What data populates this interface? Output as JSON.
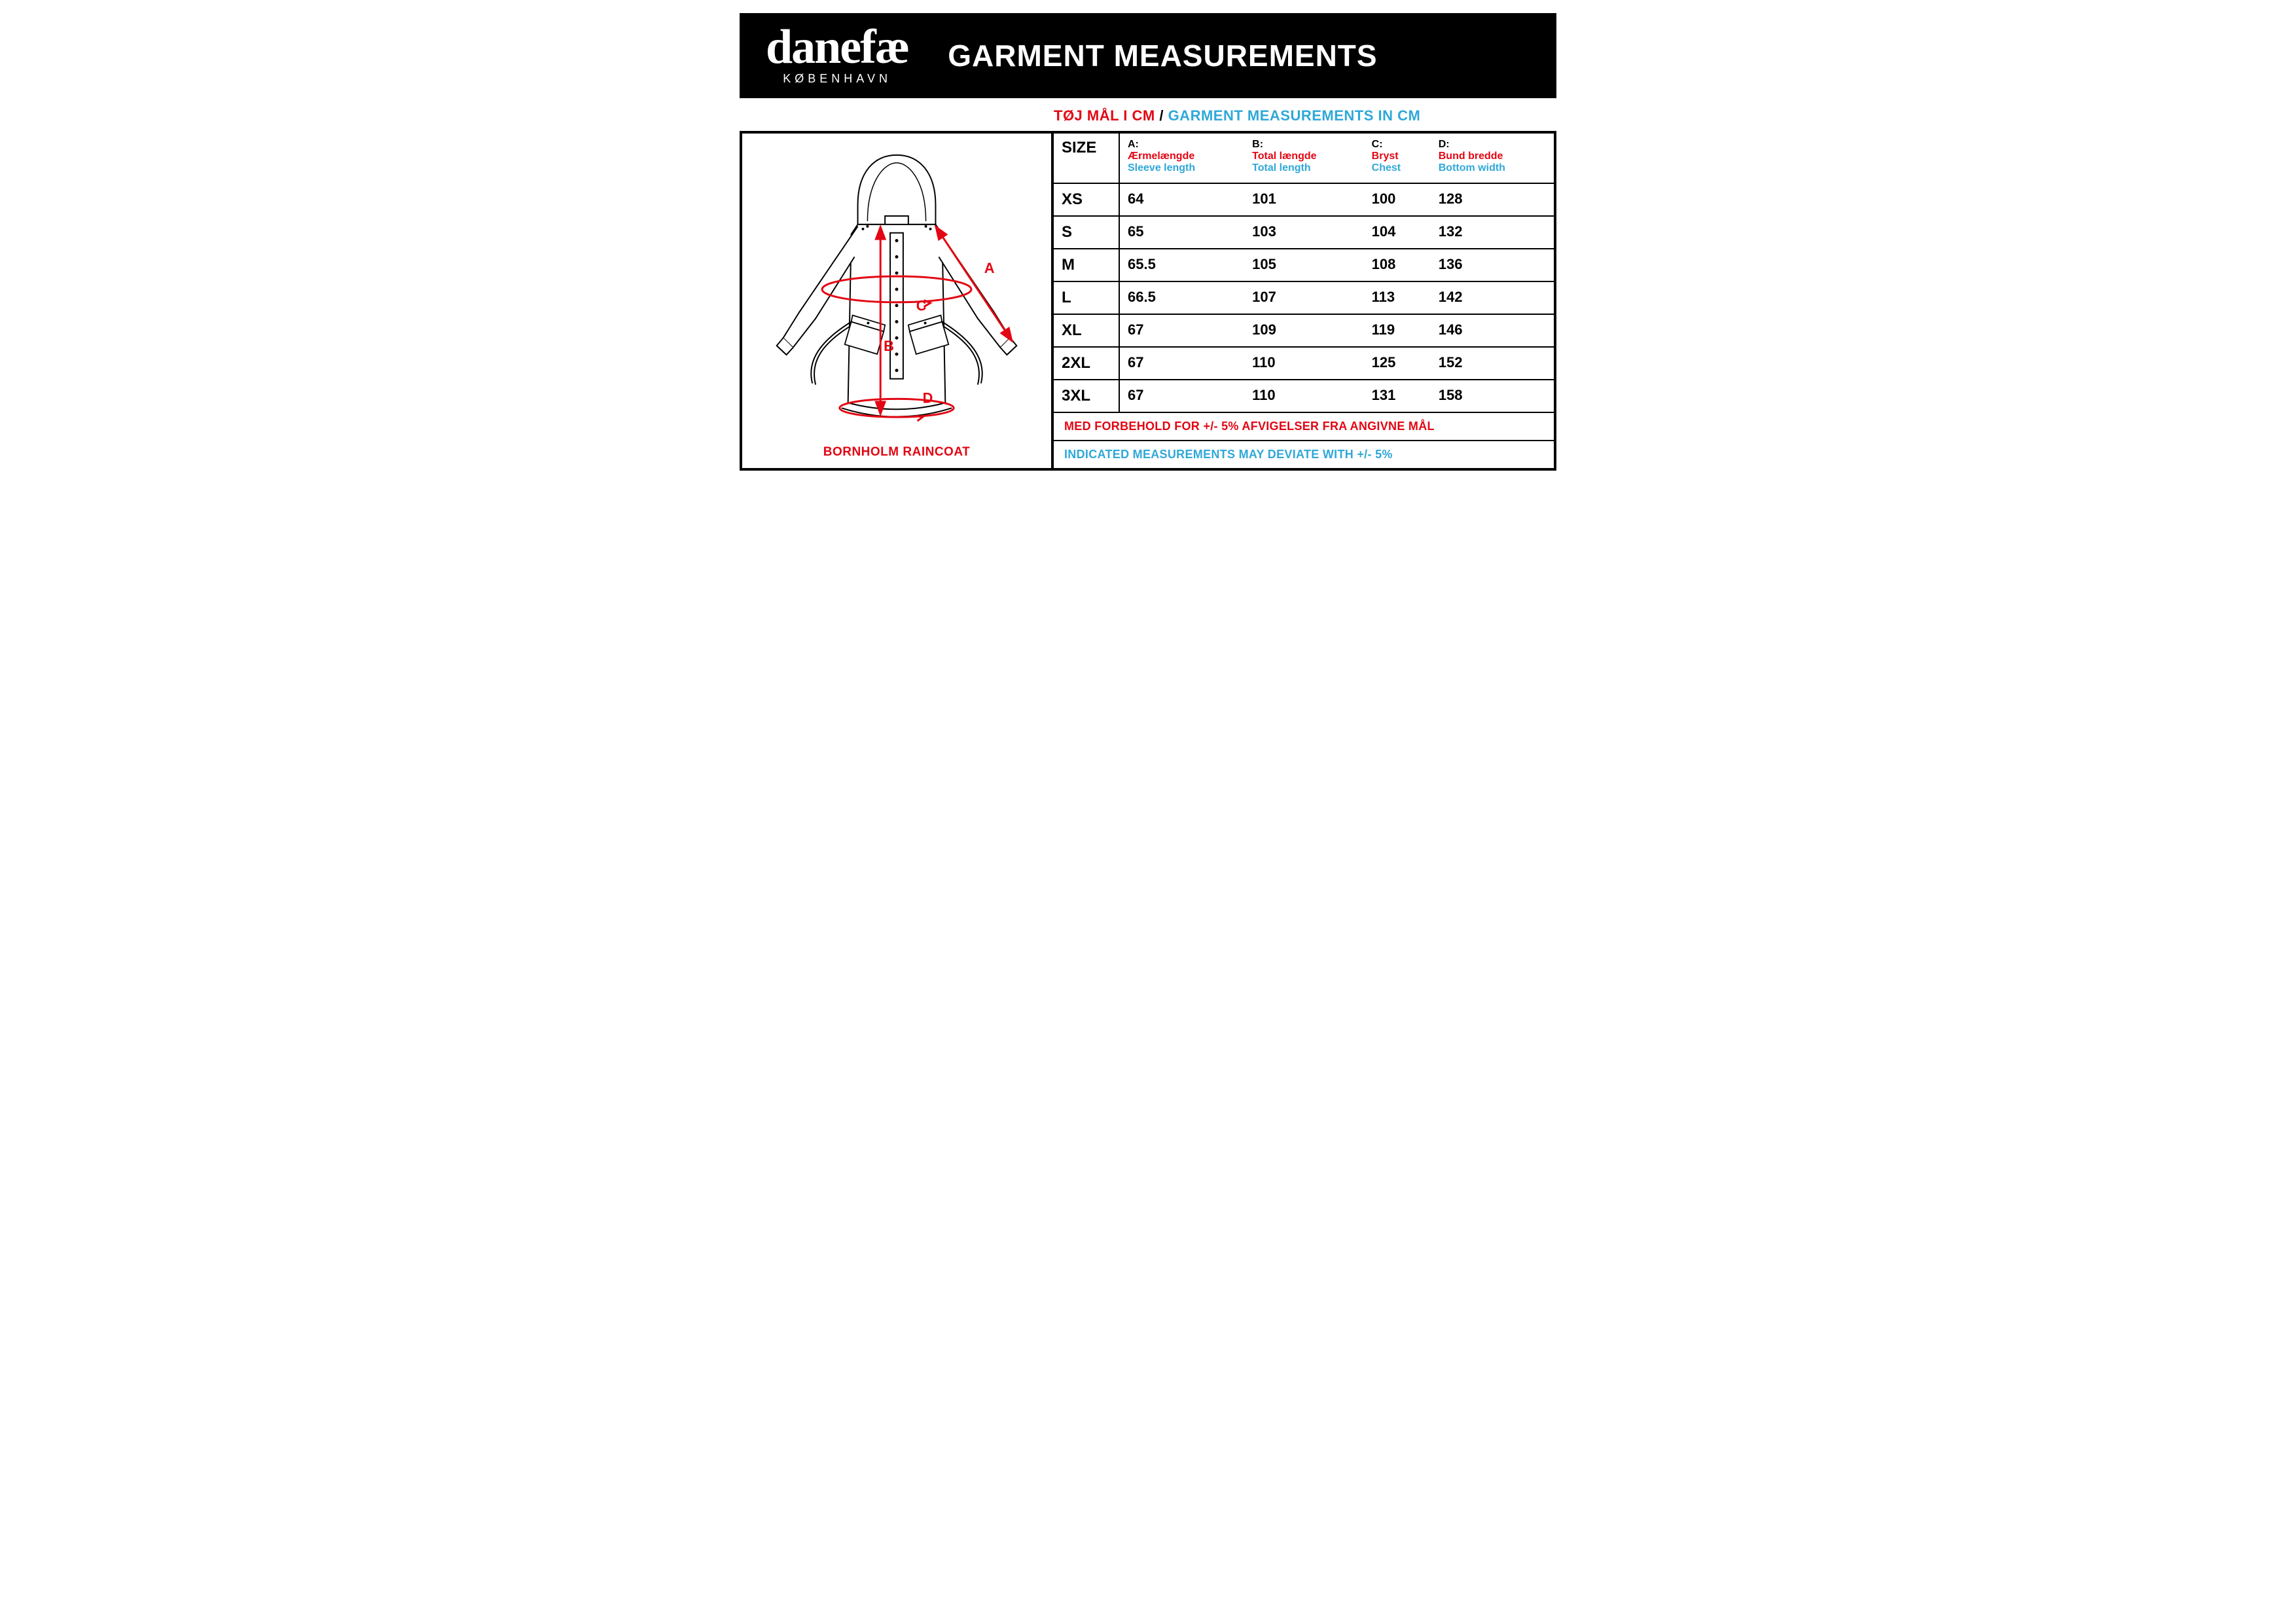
{
  "header": {
    "logo_text": "danefæ",
    "logo_subtext": "KØBENHAVN",
    "title": "GARMENT MEASUREMENTS"
  },
  "subtitle": {
    "dk": "TØJ MÅL I CM",
    "sep": " / ",
    "en": "GARMENT MEASUREMENTS IN CM"
  },
  "diagram": {
    "caption": "BORNHOLM RAINCOAT",
    "labels": {
      "A": "A",
      "B": "B",
      "C": "C",
      "D": "D"
    },
    "colors": {
      "outline": "#000000",
      "arrows": "#e30613",
      "label": "#e30613"
    }
  },
  "table": {
    "columns": [
      {
        "key": "size",
        "label": "SIZE"
      },
      {
        "key": "A",
        "code": "A:",
        "dk": "Ærmelængde",
        "en": "Sleeve length"
      },
      {
        "key": "B",
        "code": "B:",
        "dk": "Total længde",
        "en": "Total length"
      },
      {
        "key": "C",
        "code": "C:",
        "dk": "Bryst",
        "en": "Chest"
      },
      {
        "key": "D",
        "code": "D:",
        "dk": "Bund bredde",
        "en": "Bottom width"
      }
    ],
    "rows": [
      {
        "size": "XS",
        "A": "64",
        "B": "101",
        "C": "100",
        "D": "128"
      },
      {
        "size": "S",
        "A": "65",
        "B": "103",
        "C": "104",
        "D": "132"
      },
      {
        "size": "M",
        "A": "65.5",
        "B": "105",
        "C": "108",
        "D": "136"
      },
      {
        "size": "L",
        "A": "66.5",
        "B": "107",
        "C": "113",
        "D": "142"
      },
      {
        "size": "XL",
        "A": "67",
        "B": "109",
        "C": "119",
        "D": "146"
      },
      {
        "size": "2XL",
        "A": "67",
        "B": "110",
        "C": "125",
        "D": "152"
      },
      {
        "size": "3XL",
        "A": "67",
        "B": "110",
        "C": "131",
        "D": "158"
      }
    ]
  },
  "notes": {
    "dk": "MED FORBEHOLD FOR +/- 5% AFVIGELSER FRA ANGIVNE MÅL",
    "en": "INDICATED MEASUREMENTS MAY DEVIATE WITH +/- 5%"
  },
  "style": {
    "red": "#e30613",
    "cyan": "#2fa8d8",
    "black": "#000000",
    "bg": "#ffffff"
  }
}
